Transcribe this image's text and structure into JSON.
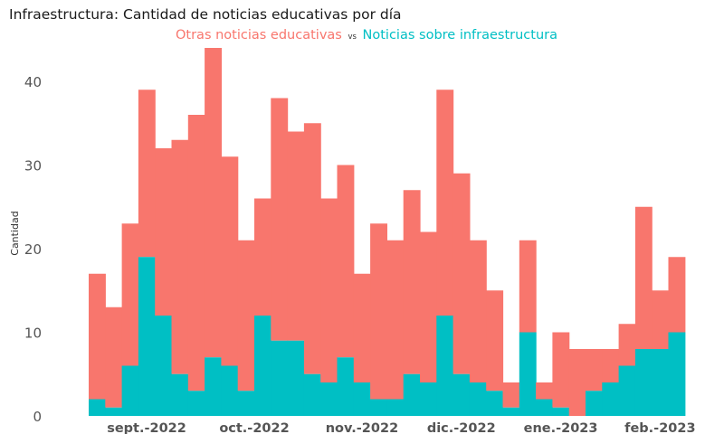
{
  "title": "Infraestructura: Cantidad de noticias educativas por día",
  "subtitle": {
    "series1": "Otras noticias educativas",
    "sep": "vs",
    "series2": "Noticias sobre infraestructura"
  },
  "colors": {
    "other": "#f8766d",
    "infra": "#00bfc4",
    "text": "#555555"
  },
  "chart_data": {
    "type": "bar",
    "stacked": true,
    "title": "Infraestructura: Cantidad de noticias educativas por día",
    "xlabel": "",
    "ylabel": "Cantidad",
    "ylim": [
      0,
      45
    ],
    "yticks": [
      0,
      10,
      20,
      30,
      40
    ],
    "grid": false,
    "x_tick_labels": [
      "sept.-2022",
      "oct.-2022",
      "nov.-2022",
      "dic.-2022",
      "ene.-2023",
      "feb.-2023"
    ],
    "x_tick_positions": [
      3.5,
      10,
      16.5,
      22.5,
      28.5,
      34.5
    ],
    "series": [
      {
        "name": "Noticias sobre infraestructura",
        "color": "#00bfc4",
        "values": [
          2,
          1,
          6,
          19,
          12,
          5,
          3,
          7,
          6,
          3,
          12,
          9,
          9,
          5,
          4,
          7,
          4,
          2,
          2,
          5,
          4,
          12,
          5,
          4,
          3,
          1,
          10,
          2,
          1,
          0,
          3,
          4,
          6,
          8,
          8,
          10
        ]
      },
      {
        "name": "Otras noticias educativas",
        "color": "#f8766d",
        "values": [
          15,
          12,
          17,
          20,
          20,
          28,
          33,
          37,
          25,
          18,
          14,
          29,
          25,
          30,
          22,
          23,
          13,
          21,
          19,
          22,
          18,
          27,
          24,
          17,
          12,
          3,
          11,
          2,
          9,
          8,
          5,
          4,
          5,
          17,
          7,
          9
        ]
      }
    ],
    "totals": [
      17,
      13,
      23,
      39,
      32,
      33,
      36,
      44,
      31,
      21,
      26,
      38,
      34,
      35,
      26,
      30,
      17,
      23,
      21,
      27,
      22,
      39,
      29,
      21,
      15,
      4,
      21,
      4,
      10,
      8,
      8,
      8,
      11,
      25,
      15,
      19
    ]
  }
}
